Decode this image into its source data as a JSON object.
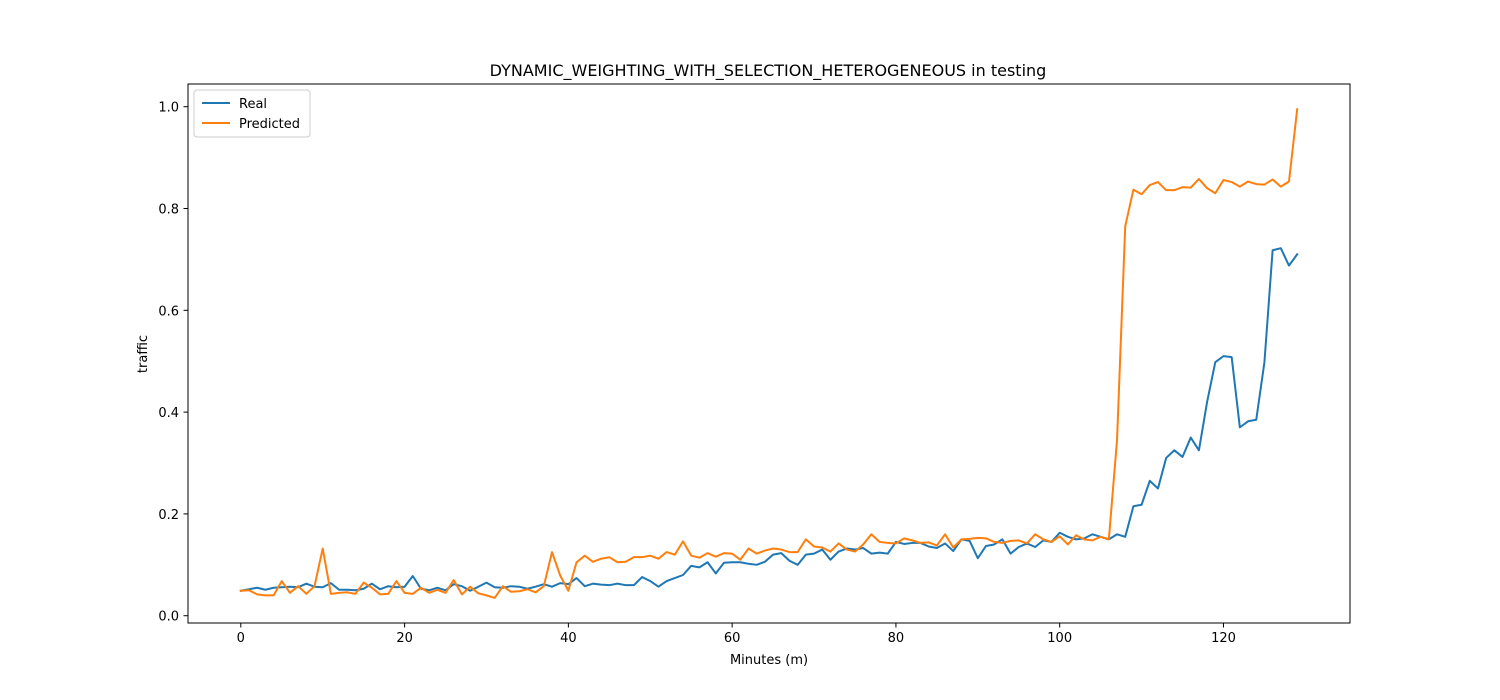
{
  "chart_data": {
    "type": "line",
    "title": "DYNAMIC_WEIGHTING_WITH_SELECTION_HETEROGENEOUS in testing",
    "xlabel": "Minutes (m)",
    "ylabel": "traffic",
    "xlim": [
      -6.45,
      135.45
    ],
    "ylim": [
      -0.0143,
      1.0446
    ],
    "xticks": [
      0,
      20,
      40,
      60,
      80,
      100,
      120
    ],
    "yticks": [
      0.0,
      0.2,
      0.4,
      0.6,
      0.8,
      1.0
    ],
    "xtick_labels": [
      "0",
      "20",
      "40",
      "60",
      "80",
      "100",
      "120"
    ],
    "ytick_labels": [
      "0.0",
      "0.2",
      "0.4",
      "0.6",
      "0.8",
      "1.0"
    ],
    "grid": false,
    "legend_position": "top-left",
    "x_start": 0,
    "series": [
      {
        "name": "Real",
        "color": "#1f77b4",
        "values": [
          0.049,
          0.052,
          0.055,
          0.051,
          0.055,
          0.056,
          0.057,
          0.056,
          0.063,
          0.057,
          0.056,
          0.064,
          0.051,
          0.051,
          0.05,
          0.053,
          0.063,
          0.052,
          0.058,
          0.056,
          0.057,
          0.078,
          0.053,
          0.05,
          0.055,
          0.05,
          0.062,
          0.058,
          0.049,
          0.057,
          0.065,
          0.056,
          0.055,
          0.058,
          0.057,
          0.053,
          0.057,
          0.062,
          0.057,
          0.064,
          0.062,
          0.074,
          0.058,
          0.063,
          0.061,
          0.06,
          0.063,
          0.06,
          0.06,
          0.076,
          0.068,
          0.057,
          0.068,
          0.074,
          0.08,
          0.098,
          0.095,
          0.105,
          0.083,
          0.104,
          0.105,
          0.105,
          0.102,
          0.1,
          0.106,
          0.12,
          0.123,
          0.108,
          0.1,
          0.12,
          0.122,
          0.13,
          0.11,
          0.126,
          0.132,
          0.13,
          0.133,
          0.122,
          0.124,
          0.122,
          0.145,
          0.141,
          0.143,
          0.143,
          0.136,
          0.133,
          0.142,
          0.127,
          0.15,
          0.147,
          0.113,
          0.137,
          0.14,
          0.15,
          0.122,
          0.135,
          0.142,
          0.135,
          0.148,
          0.145,
          0.163,
          0.155,
          0.15,
          0.152,
          0.16,
          0.155,
          0.15,
          0.16,
          0.155,
          0.215,
          0.218,
          0.265,
          0.25,
          0.31,
          0.325,
          0.312,
          0.35,
          0.325,
          0.42,
          0.498,
          0.51,
          0.508,
          0.37,
          0.382,
          0.385,
          0.498,
          0.718,
          0.722,
          0.688,
          0.71
        ]
      },
      {
        "name": "Predicted",
        "color": "#ff7f0e",
        "values": [
          0.049,
          0.05,
          0.042,
          0.04,
          0.04,
          0.068,
          0.045,
          0.058,
          0.043,
          0.058,
          0.132,
          0.043,
          0.045,
          0.046,
          0.043,
          0.065,
          0.055,
          0.042,
          0.043,
          0.068,
          0.045,
          0.043,
          0.055,
          0.045,
          0.051,
          0.045,
          0.07,
          0.042,
          0.057,
          0.044,
          0.04,
          0.035,
          0.058,
          0.047,
          0.048,
          0.052,
          0.046,
          0.058,
          0.125,
          0.079,
          0.049,
          0.105,
          0.118,
          0.106,
          0.112,
          0.115,
          0.105,
          0.106,
          0.115,
          0.115,
          0.118,
          0.112,
          0.125,
          0.12,
          0.146,
          0.118,
          0.114,
          0.123,
          0.116,
          0.123,
          0.122,
          0.11,
          0.132,
          0.122,
          0.128,
          0.132,
          0.13,
          0.125,
          0.125,
          0.15,
          0.136,
          0.134,
          0.126,
          0.142,
          0.13,
          0.126,
          0.14,
          0.16,
          0.145,
          0.143,
          0.142,
          0.152,
          0.148,
          0.143,
          0.144,
          0.138,
          0.16,
          0.134,
          0.15,
          0.151,
          0.153,
          0.152,
          0.145,
          0.143,
          0.147,
          0.148,
          0.142,
          0.16,
          0.15,
          0.145,
          0.156,
          0.14,
          0.158,
          0.15,
          0.148,
          0.155,
          0.15,
          0.345,
          0.765,
          0.837,
          0.828,
          0.846,
          0.852,
          0.836,
          0.836,
          0.842,
          0.841,
          0.858,
          0.84,
          0.83,
          0.856,
          0.852,
          0.843,
          0.853,
          0.848,
          0.847,
          0.857,
          0.843,
          0.853,
          0.995
        ]
      }
    ]
  }
}
